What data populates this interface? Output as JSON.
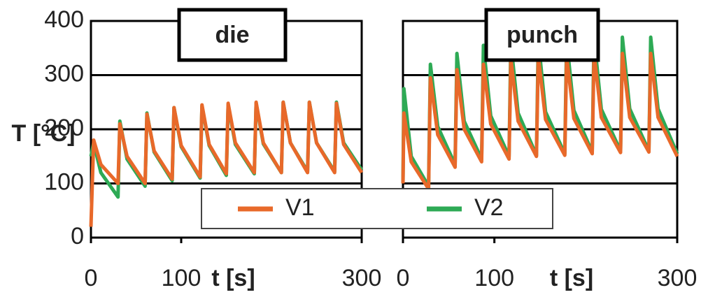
{
  "chart_data": [
    {
      "type": "line",
      "title": "die",
      "ylabel": "T [°C]",
      "xlabel": "t [s]",
      "x": [
        0,
        3,
        11,
        30,
        32,
        40,
        60,
        62,
        70,
        90,
        92,
        100,
        121,
        123,
        131,
        150,
        152,
        160,
        181,
        183,
        191,
        211,
        213,
        221,
        240,
        242,
        250,
        270,
        272,
        280,
        300
      ],
      "series": [
        {
          "name": "V1",
          "color": "#e8692a",
          "values": [
            20,
            180,
            135,
            100,
            210,
            150,
            100,
            228,
            160,
            108,
            240,
            170,
            112,
            245,
            172,
            118,
            248,
            175,
            120,
            250,
            175,
            120,
            250,
            175,
            120,
            250,
            175,
            120,
            248,
            172,
            120
          ]
        },
        {
          "name": "V2",
          "color": "#2eaa55",
          "values": [
            150,
            175,
            120,
            75,
            215,
            145,
            95,
            230,
            158,
            105,
            240,
            168,
            110,
            243,
            170,
            115,
            245,
            172,
            118,
            248,
            173,
            120,
            250,
            175,
            122,
            250,
            175,
            122,
            250,
            175,
            125
          ]
        }
      ],
      "xlim": [
        0,
        300
      ],
      "xticks": [
        0,
        100,
        300
      ],
      "ylim": [
        0,
        400
      ],
      "yticks": [
        0,
        100,
        200,
        300,
        400
      ],
      "grid": true
    },
    {
      "type": "line",
      "title": "punch",
      "xlabel": "t [s]",
      "x": [
        0,
        1,
        9,
        28,
        30,
        38,
        57,
        59,
        67,
        86,
        88,
        96,
        116,
        118,
        126,
        146,
        148,
        156,
        177,
        179,
        187,
        207,
        209,
        217,
        238,
        240,
        248,
        269,
        271,
        279,
        300
      ],
      "series": [
        {
          "color": "#e8692a",
          "values": [
            100,
            230,
            140,
            90,
            295,
            190,
            130,
            310,
            200,
            140,
            320,
            210,
            145,
            330,
            215,
            150,
            335,
            218,
            152,
            335,
            220,
            155,
            340,
            222,
            157,
            340,
            222,
            158,
            340,
            222,
            150
          ]
        },
        {
          "color": "#2eaa55",
          "values": [
            100,
            275,
            150,
            95,
            320,
            205,
            135,
            340,
            215,
            145,
            355,
            225,
            150,
            360,
            230,
            152,
            365,
            232,
            155,
            365,
            235,
            158,
            370,
            237,
            160,
            370,
            238,
            160,
            370,
            238,
            155
          ]
        }
      ],
      "xlim": [
        0,
        300
      ],
      "xticks": [
        0,
        100,
        300
      ],
      "ylim": [
        0,
        400
      ],
      "grid": true
    }
  ]
}
